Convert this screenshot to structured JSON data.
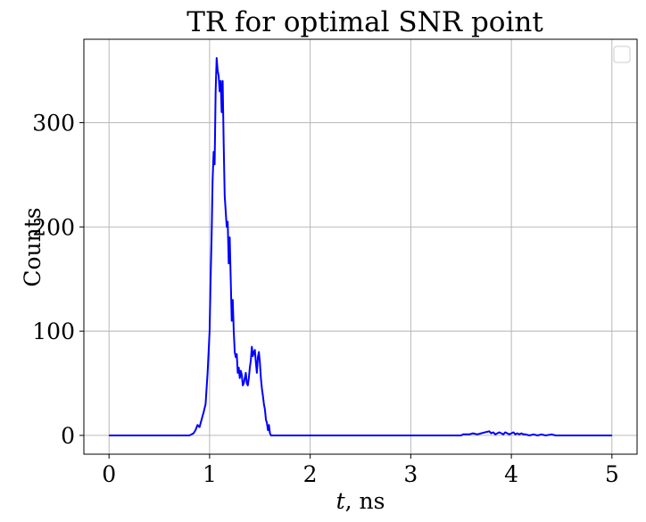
{
  "chart_data": {
    "type": "line",
    "title": "TR for optimal SNR point",
    "xlabel_var": "t",
    "xlabel_unit": ", ns",
    "ylabel": "Counts",
    "xlim": [
      -0.25,
      5.25
    ],
    "ylim": [
      -18,
      380
    ],
    "xticks": [
      0,
      1,
      2,
      3,
      4,
      5
    ],
    "xtick_labels": [
      "0",
      "1",
      "2",
      "3",
      "4",
      "5"
    ],
    "yticks": [
      0,
      100,
      200,
      300
    ],
    "ytick_labels": [
      "0",
      "100",
      "200",
      "300"
    ],
    "grid": true,
    "legend": "top-right (empty)",
    "series": [
      {
        "color": "#0000ff",
        "x": [
          0.0,
          0.8,
          0.84,
          0.86,
          0.88,
          0.9,
          0.92,
          0.94,
          0.96,
          0.98,
          1.0,
          1.01,
          1.02,
          1.03,
          1.04,
          1.05,
          1.06,
          1.07,
          1.08,
          1.09,
          1.1,
          1.11,
          1.12,
          1.13,
          1.14,
          1.15,
          1.16,
          1.17,
          1.18,
          1.19,
          1.2,
          1.21,
          1.22,
          1.23,
          1.24,
          1.25,
          1.26,
          1.27,
          1.28,
          1.29,
          1.3,
          1.31,
          1.32,
          1.33,
          1.34,
          1.35,
          1.36,
          1.37,
          1.38,
          1.39,
          1.4,
          1.41,
          1.42,
          1.43,
          1.44,
          1.45,
          1.46,
          1.47,
          1.48,
          1.49,
          1.5,
          1.51,
          1.52,
          1.53,
          1.54,
          1.55,
          1.56,
          1.57,
          1.58,
          1.59,
          1.6,
          1.61,
          1.62,
          1.63,
          1.64,
          1.65,
          1.66,
          1.67,
          1.68,
          1.69,
          1.7,
          1.72,
          3.48,
          3.5,
          3.52,
          3.58,
          3.62,
          3.66,
          3.7,
          3.74,
          3.78,
          3.8,
          3.82,
          3.84,
          3.86,
          3.88,
          3.9,
          3.92,
          3.94,
          3.96,
          3.98,
          4.0,
          4.02,
          4.04,
          4.06,
          4.08,
          4.1,
          4.12,
          4.14,
          4.18,
          4.22,
          4.26,
          4.3,
          4.34,
          4.4,
          4.44,
          4.46,
          5.0
        ],
        "y": [
          0,
          0,
          2,
          5,
          10,
          8,
          15,
          22,
          30,
          60,
          100,
          150,
          190,
          245,
          272,
          260,
          330,
          362,
          350,
          345,
          330,
          340,
          310,
          340,
          280,
          230,
          215,
          200,
          205,
          165,
          190,
          150,
          110,
          130,
          100,
          80,
          75,
          78,
          60,
          65,
          55,
          62,
          58,
          48,
          50,
          55,
          60,
          50,
          48,
          55,
          65,
          72,
          85,
          76,
          80,
          82,
          70,
          60,
          75,
          80,
          70,
          55,
          45,
          38,
          30,
          25,
          15,
          12,
          5,
          10,
          2,
          0,
          0,
          0,
          0,
          0,
          0,
          0,
          0,
          0,
          0,
          0,
          0,
          0,
          1,
          1,
          2,
          1,
          2,
          3,
          4,
          2,
          3,
          1,
          2,
          3,
          2,
          1,
          3,
          2,
          1,
          2,
          3,
          1,
          2,
          1,
          2,
          1,
          1,
          0,
          1,
          0,
          1,
          0,
          1,
          0,
          0,
          0
        ]
      }
    ]
  }
}
